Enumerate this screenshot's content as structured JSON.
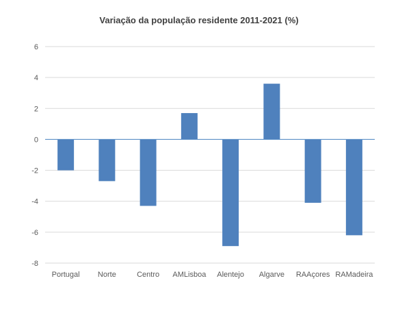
{
  "chart_data": {
    "type": "bar",
    "title": "Variação da população residente 2011-2021 (%)",
    "xlabel": "",
    "ylabel": "",
    "categories": [
      "Portugal",
      "Norte",
      "Centro",
      "AMLisboa",
      "Alentejo",
      "Algarve",
      "RAAçores",
      "RAMadeira"
    ],
    "values": [
      -2.0,
      -2.7,
      -4.3,
      1.7,
      -6.9,
      3.6,
      -4.1,
      -6.2
    ],
    "ylim": [
      -8,
      6
    ],
    "yticks": [
      6,
      4,
      2,
      0,
      -2,
      -4,
      -6,
      -8
    ],
    "grid": true,
    "legend": "none",
    "bar_color": "#4f81bd"
  }
}
